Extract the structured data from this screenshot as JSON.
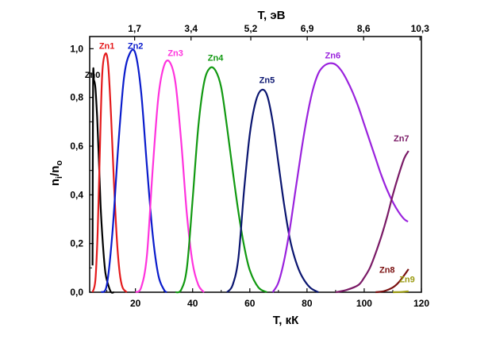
{
  "chart_data": {
    "type": "line",
    "xlabel": "T, кК",
    "ylabel_main": "n",
    "ylabel_sub1": "i",
    "ylabel_sep": "/n",
    "ylabel_sub2": "o",
    "top_axis_label": "T, эВ",
    "xlim": [
      4,
      120
    ],
    "ylim": [
      0,
      1.05
    ],
    "x_ticks": [
      20,
      40,
      60,
      80,
      100,
      120
    ],
    "x_tick_labels": [
      "20",
      "40",
      "60",
      "80",
      "100",
      "120"
    ],
    "y_ticks": [
      0.0,
      0.2,
      0.4,
      0.6,
      0.8,
      1.0
    ],
    "y_tick_labels": [
      "0,0",
      "0,2",
      "0,4",
      "0,6",
      "0,8",
      "1,0"
    ],
    "top_ticks": [
      19.72,
      39.45,
      60.34,
      80.07,
      99.79,
      119.52
    ],
    "top_tick_labels": [
      "1,7",
      "3,4",
      "5,2",
      "6,9",
      "8,6",
      "10,3"
    ],
    "grid": false,
    "series": [
      {
        "name": "Zn0",
        "color": "#000000",
        "label_x": 5.0,
        "label_y": 0.88,
        "points": [
          [
            5.0,
            0.11
          ],
          [
            5.2,
            0.86
          ],
          [
            5.5,
            0.87
          ],
          [
            6.0,
            0.84
          ],
          [
            6.6,
            0.72
          ],
          [
            7.2,
            0.55
          ],
          [
            7.8,
            0.36
          ],
          [
            8.6,
            0.2
          ],
          [
            9.5,
            0.08
          ],
          [
            10.5,
            0.03
          ],
          [
            11.5,
            0.0
          ],
          [
            12.5,
            0.0
          ]
        ]
      },
      {
        "name": "Zn1",
        "color": "#e41a1c",
        "label_x": 10.0,
        "label_y": 1.0,
        "points": [
          [
            5.0,
            0.0
          ],
          [
            6.0,
            0.05
          ],
          [
            6.8,
            0.25
          ],
          [
            7.6,
            0.6
          ],
          [
            8.4,
            0.9
          ],
          [
            9.5,
            0.98
          ],
          [
            10.5,
            0.93
          ],
          [
            11.5,
            0.72
          ],
          [
            12.5,
            0.45
          ],
          [
            13.5,
            0.22
          ],
          [
            14.5,
            0.08
          ],
          [
            15.5,
            0.02
          ],
          [
            17.0,
            0.0
          ]
        ]
      },
      {
        "name": "Zn2",
        "color": "#0a1ccc",
        "label_x": 20.0,
        "label_y": 1.0,
        "points": [
          [
            8.0,
            0.0
          ],
          [
            10.0,
            0.03
          ],
          [
            12.0,
            0.25
          ],
          [
            14.0,
            0.6
          ],
          [
            16.0,
            0.88
          ],
          [
            18.0,
            0.98
          ],
          [
            20.0,
            0.98
          ],
          [
            22.0,
            0.82
          ],
          [
            24.0,
            0.52
          ],
          [
            26.0,
            0.24
          ],
          [
            28.0,
            0.07
          ],
          [
            30.0,
            0.01
          ],
          [
            31.0,
            0.0
          ]
        ]
      },
      {
        "name": "Zn3",
        "color": "#ff33dd",
        "label_x": 34.0,
        "label_y": 0.97,
        "points": [
          [
            20.0,
            0.0
          ],
          [
            22.0,
            0.02
          ],
          [
            24.0,
            0.15
          ],
          [
            26.0,
            0.5
          ],
          [
            28.0,
            0.8
          ],
          [
            30.0,
            0.93
          ],
          [
            32.0,
            0.945
          ],
          [
            34.0,
            0.86
          ],
          [
            36.0,
            0.62
          ],
          [
            38.0,
            0.32
          ],
          [
            40.0,
            0.12
          ],
          [
            42.0,
            0.03
          ],
          [
            44.0,
            0.0
          ]
        ]
      },
      {
        "name": "Zn4",
        "color": "#119911",
        "label_x": 48.0,
        "label_y": 0.95,
        "points": [
          [
            34.0,
            0.0
          ],
          [
            36.0,
            0.01
          ],
          [
            38.0,
            0.1
          ],
          [
            40.0,
            0.38
          ],
          [
            42.0,
            0.68
          ],
          [
            44.0,
            0.86
          ],
          [
            46.0,
            0.92
          ],
          [
            48.0,
            0.91
          ],
          [
            50.0,
            0.84
          ],
          [
            52.0,
            0.68
          ],
          [
            54.0,
            0.5
          ],
          [
            56.0,
            0.33
          ],
          [
            58.0,
            0.19
          ],
          [
            60.0,
            0.09
          ],
          [
            63.0,
            0.02
          ],
          [
            66.0,
            0.0
          ]
        ]
      },
      {
        "name": "Zn5",
        "color": "#0a1570",
        "label_x": 66.0,
        "label_y": 0.86,
        "points": [
          [
            52.0,
            0.0
          ],
          [
            54.0,
            0.03
          ],
          [
            56.0,
            0.14
          ],
          [
            58.0,
            0.42
          ],
          [
            60.0,
            0.65
          ],
          [
            62.0,
            0.78
          ],
          [
            64.0,
            0.83
          ],
          [
            66.0,
            0.81
          ],
          [
            68.0,
            0.7
          ],
          [
            70.0,
            0.53
          ],
          [
            72.0,
            0.36
          ],
          [
            74.0,
            0.22
          ],
          [
            76.0,
            0.13
          ],
          [
            78.0,
            0.07
          ],
          [
            81.0,
            0.02
          ],
          [
            84.0,
            0.0
          ]
        ]
      },
      {
        "name": "Zn6",
        "color": "#9a22dd",
        "label_x": 89.0,
        "label_y": 0.96,
        "points": [
          [
            68.0,
            0.0
          ],
          [
            70.0,
            0.04
          ],
          [
            72.0,
            0.13
          ],
          [
            74.0,
            0.26
          ],
          [
            76.0,
            0.42
          ],
          [
            78.0,
            0.58
          ],
          [
            80.0,
            0.72
          ],
          [
            82.0,
            0.83
          ],
          [
            84.0,
            0.9
          ],
          [
            86.0,
            0.93
          ],
          [
            88.0,
            0.94
          ],
          [
            90.0,
            0.935
          ],
          [
            92.0,
            0.91
          ],
          [
            94.0,
            0.87
          ],
          [
            96.0,
            0.82
          ],
          [
            98.0,
            0.76
          ],
          [
            100.0,
            0.69
          ],
          [
            102.0,
            0.62
          ],
          [
            104.0,
            0.55
          ],
          [
            106.0,
            0.48
          ],
          [
            108.0,
            0.42
          ],
          [
            110.0,
            0.37
          ],
          [
            112.0,
            0.33
          ],
          [
            114.0,
            0.3
          ],
          [
            115.3,
            0.29
          ]
        ]
      },
      {
        "name": "Zn7",
        "color": "#7a1a66",
        "label_x": 113.0,
        "label_y": 0.62,
        "points": [
          [
            90.0,
            0.0
          ],
          [
            94.0,
            0.01
          ],
          [
            98.0,
            0.03
          ],
          [
            100.0,
            0.06
          ],
          [
            102.0,
            0.1
          ],
          [
            104.0,
            0.16
          ],
          [
            106.0,
            0.23
          ],
          [
            108.0,
            0.31
          ],
          [
            110.0,
            0.4
          ],
          [
            112.0,
            0.48
          ],
          [
            114.0,
            0.55
          ],
          [
            115.5,
            0.58
          ]
        ]
      },
      {
        "name": "Zn8",
        "color": "#7a1010",
        "label_x": 108.0,
        "label_y": 0.08,
        "points": [
          [
            104.0,
            0.0
          ],
          [
            107.0,
            0.005
          ],
          [
            110.0,
            0.02
          ],
          [
            112.0,
            0.04
          ],
          [
            114.0,
            0.07
          ],
          [
            115.5,
            0.095
          ]
        ]
      },
      {
        "name": "Zn9",
        "color": "#9a9a10",
        "label_x": 115.0,
        "label_y": 0.04,
        "points": [
          [
            110.0,
            0.0
          ],
          [
            113.0,
            0.001
          ],
          [
            115.5,
            0.004
          ]
        ]
      }
    ]
  }
}
